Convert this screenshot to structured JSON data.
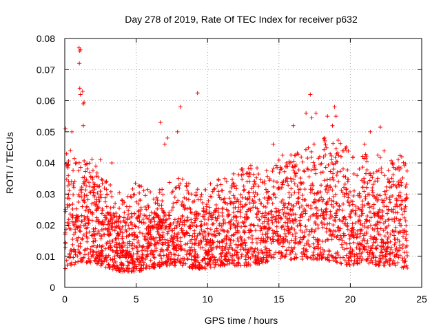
{
  "chart_data": {
    "type": "scatter",
    "title": "Day 278 of 2019, Rate Of TEC Index for receiver p632",
    "xlabel": "GPS time / hours",
    "ylabel": "ROTI / TECUs",
    "xlim": [
      0,
      25
    ],
    "ylim": [
      0,
      0.08
    ],
    "x_ticks": [
      0,
      5,
      10,
      15,
      20,
      25
    ],
    "y_ticks": [
      0,
      0.01,
      0.02,
      0.03,
      0.04,
      0.05,
      0.06,
      0.07,
      0.08
    ],
    "x_tick_labels": [
      "0",
      "5",
      "10",
      "15",
      "20",
      "25"
    ],
    "y_tick_labels": [
      "0",
      "0.01",
      "0.02",
      "0.03",
      "0.04",
      "0.05",
      "0.06",
      "0.07",
      "0.08"
    ],
    "grid": true,
    "marker": "+",
    "marker_color": "#ff0000",
    "data_time_range": [
      0,
      24
    ],
    "baseline_envelope": {
      "x": [
        0,
        1,
        2,
        3,
        4,
        5,
        6,
        7,
        8,
        9,
        10,
        11,
        12,
        13,
        14,
        15,
        16,
        17,
        18,
        19,
        20,
        21,
        22,
        23,
        24
      ],
      "low": [
        0.006,
        0.008,
        0.008,
        0.006,
        0.005,
        0.005,
        0.006,
        0.007,
        0.007,
        0.006,
        0.006,
        0.007,
        0.007,
        0.007,
        0.008,
        0.009,
        0.009,
        0.009,
        0.009,
        0.008,
        0.007,
        0.008,
        0.007,
        0.007,
        0.006
      ],
      "high": [
        0.036,
        0.034,
        0.034,
        0.026,
        0.022,
        0.026,
        0.024,
        0.026,
        0.028,
        0.026,
        0.026,
        0.027,
        0.03,
        0.032,
        0.03,
        0.034,
        0.036,
        0.038,
        0.04,
        0.04,
        0.036,
        0.036,
        0.036,
        0.036,
        0.034
      ]
    },
    "outliers": [
      {
        "x": 1.0,
        "y": 0.077
      },
      {
        "x": 1.05,
        "y": 0.076
      },
      {
        "x": 1.1,
        "y": 0.0765
      },
      {
        "x": 1.02,
        "y": 0.072
      },
      {
        "x": 1.05,
        "y": 0.064
      },
      {
        "x": 1.25,
        "y": 0.063
      },
      {
        "x": 1.1,
        "y": 0.062
      },
      {
        "x": 1.3,
        "y": 0.059
      },
      {
        "x": 1.35,
        "y": 0.0595
      },
      {
        "x": 0.05,
        "y": 0.051
      },
      {
        "x": 1.3,
        "y": 0.052
      },
      {
        "x": 0.5,
        "y": 0.05
      },
      {
        "x": 6.7,
        "y": 0.053
      },
      {
        "x": 8.1,
        "y": 0.058
      },
      {
        "x": 9.3,
        "y": 0.0625
      },
      {
        "x": 7.9,
        "y": 0.05
      },
      {
        "x": 7.2,
        "y": 0.048
      },
      {
        "x": 7.0,
        "y": 0.046
      },
      {
        "x": 17.2,
        "y": 0.062
      },
      {
        "x": 17.3,
        "y": 0.0545
      },
      {
        "x": 16.9,
        "y": 0.056
      },
      {
        "x": 17.6,
        "y": 0.056
      },
      {
        "x": 18.4,
        "y": 0.055
      },
      {
        "x": 18.9,
        "y": 0.058
      },
      {
        "x": 19.0,
        "y": 0.055
      },
      {
        "x": 18.75,
        "y": 0.052
      },
      {
        "x": 18.2,
        "y": 0.048
      },
      {
        "x": 16.0,
        "y": 0.052
      },
      {
        "x": 22.1,
        "y": 0.0515
      },
      {
        "x": 21.4,
        "y": 0.05
      },
      {
        "x": 14.6,
        "y": 0.046
      },
      {
        "x": 2.5,
        "y": 0.041
      },
      {
        "x": 3.3,
        "y": 0.04
      },
      {
        "x": 0.4,
        "y": 0.044
      },
      {
        "x": 21.0,
        "y": 0.046
      },
      {
        "x": 23.6,
        "y": 0.042
      }
    ]
  }
}
